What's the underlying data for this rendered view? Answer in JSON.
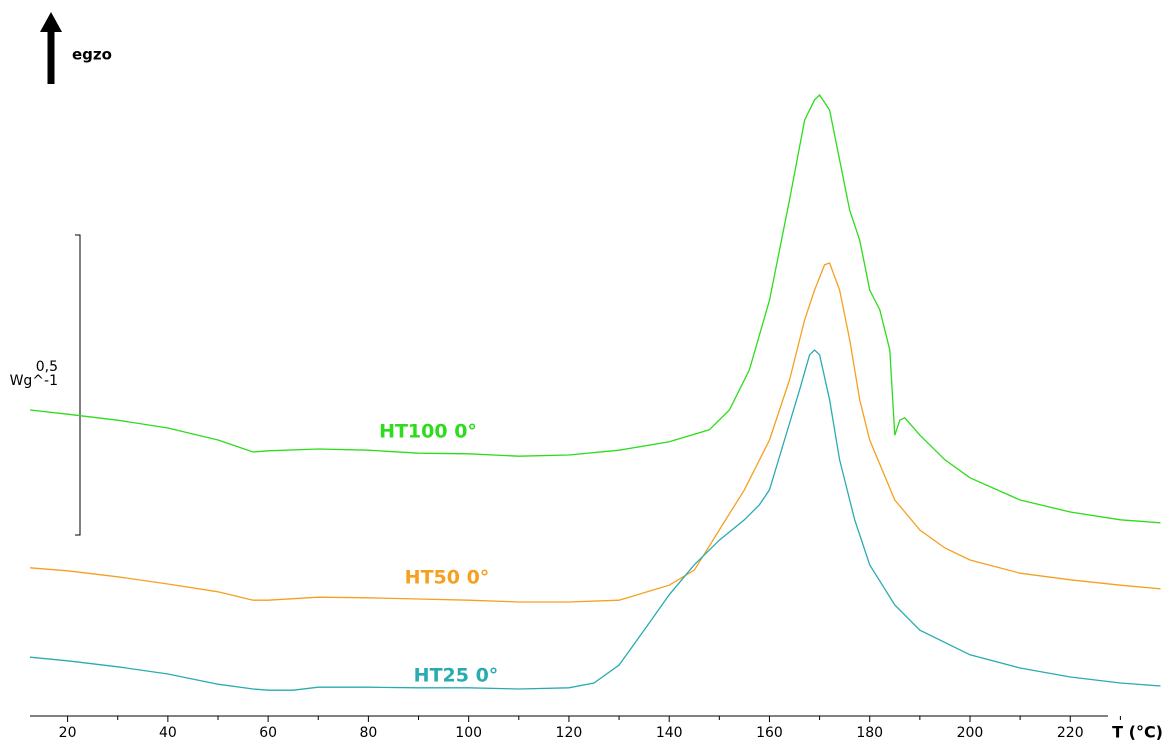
{
  "chart_data": {
    "type": "line",
    "header": "egzo",
    "x_label": "T (°C)",
    "xlim": [
      12.5,
      238.5
    ],
    "xticks": [
      20,
      40,
      60,
      80,
      100,
      120,
      140,
      160,
      180,
      200,
      220
    ],
    "ylim": [
      0,
      1.19
    ],
    "scale_bar": {
      "value": 0.5,
      "label": "0,5",
      "unit": "Wg^-1"
    },
    "series": [
      {
        "name": "HT100 0°",
        "color": "#2ddc1c",
        "x": [
          12.5,
          20,
          30,
          40,
          50,
          57,
          60,
          70,
          80,
          90,
          100,
          110,
          120,
          130,
          140,
          148,
          152,
          156,
          160,
          164,
          167,
          169,
          170,
          172,
          174,
          176,
          178,
          179,
          180,
          182,
          184,
          185,
          186,
          187,
          190,
          195,
          200,
          210,
          220,
          230,
          238
        ],
        "values": [
          0.51,
          0.503,
          0.493,
          0.48,
          0.46,
          0.44,
          0.442,
          0.445,
          0.443,
          0.438,
          0.437,
          0.433,
          0.435,
          0.443,
          0.457,
          0.477,
          0.51,
          0.577,
          0.693,
          0.86,
          0.993,
          1.027,
          1.035,
          1.01,
          0.927,
          0.843,
          0.793,
          0.752,
          0.71,
          0.677,
          0.61,
          0.468,
          0.493,
          0.497,
          0.468,
          0.427,
          0.397,
          0.36,
          0.34,
          0.327,
          0.322
        ]
      },
      {
        "name": "HT50 0°",
        "color": "#f5a020",
        "x": [
          12.5,
          20,
          30,
          40,
          50,
          57,
          60,
          70,
          80,
          90,
          100,
          110,
          120,
          130,
          140,
          145,
          150,
          155,
          160,
          164,
          167,
          169,
          171,
          172,
          174,
          176,
          178,
          180,
          185,
          190,
          195,
          200,
          210,
          220,
          230,
          238
        ],
        "values": [
          0.247,
          0.242,
          0.232,
          0.22,
          0.207,
          0.193,
          0.193,
          0.198,
          0.197,
          0.195,
          0.193,
          0.19,
          0.19,
          0.193,
          0.218,
          0.243,
          0.31,
          0.377,
          0.46,
          0.56,
          0.66,
          0.71,
          0.752,
          0.755,
          0.71,
          0.627,
          0.527,
          0.46,
          0.36,
          0.31,
          0.28,
          0.26,
          0.238,
          0.227,
          0.218,
          0.212
        ]
      },
      {
        "name": "HT25 0°",
        "color": "#2aabb0",
        "x": [
          12.5,
          20,
          30,
          40,
          50,
          57,
          60,
          65,
          70,
          80,
          90,
          100,
          110,
          120,
          125,
          130,
          135,
          140,
          145,
          150,
          155,
          158,
          160,
          163,
          166,
          168,
          169,
          170,
          172,
          174,
          177,
          180,
          185,
          190,
          200,
          210,
          220,
          230,
          238
        ],
        "values": [
          0.098,
          0.092,
          0.082,
          0.07,
          0.053,
          0.045,
          0.043,
          0.043,
          0.048,
          0.048,
          0.047,
          0.047,
          0.045,
          0.047,
          0.055,
          0.085,
          0.143,
          0.202,
          0.252,
          0.293,
          0.327,
          0.352,
          0.377,
          0.46,
          0.543,
          0.602,
          0.61,
          0.602,
          0.527,
          0.427,
          0.327,
          0.252,
          0.185,
          0.143,
          0.102,
          0.08,
          0.065,
          0.055,
          0.05
        ]
      }
    ]
  }
}
